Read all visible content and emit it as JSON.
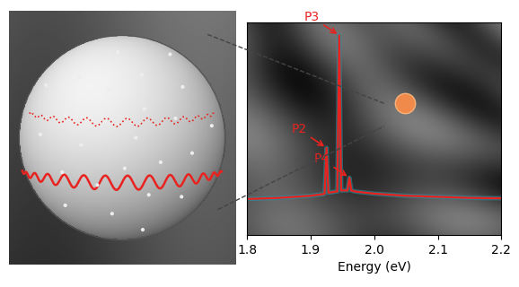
{
  "chart_data": {
    "type": "line",
    "x_label": "Energy (eV)",
    "x": [
      1.8,
      1.85,
      1.9,
      1.92,
      1.922,
      1.925,
      1.928,
      1.93,
      1.94,
      1.942,
      1.945,
      1.948,
      1.95,
      1.958,
      1.961,
      1.964,
      1.97,
      2.0,
      2.05,
      2.1,
      2.15,
      2.2
    ],
    "series": [
      {
        "color": "#e8231f",
        "values": [
          17,
          17.5,
          18.5,
          19.3,
          19.5,
          41,
          20,
          20,
          20.5,
          20.5,
          94,
          21,
          21,
          21,
          27,
          21,
          20.5,
          19.5,
          18.5,
          18,
          17.5,
          17.3
        ]
      }
    ],
    "xlim": [
      1.8,
      2.2
    ],
    "xticks": [
      1.8,
      1.9,
      2.0,
      2.1,
      2.2
    ],
    "ylim": [
      0,
      100
    ],
    "yticks": [],
    "tick_labels": "x",
    "annotations": [
      {
        "text": "P3",
        "x": 1.945
      },
      {
        "text": "P2",
        "x": 1.925
      },
      {
        "text": "P4",
        "x": 1.961
      }
    ]
  }
}
